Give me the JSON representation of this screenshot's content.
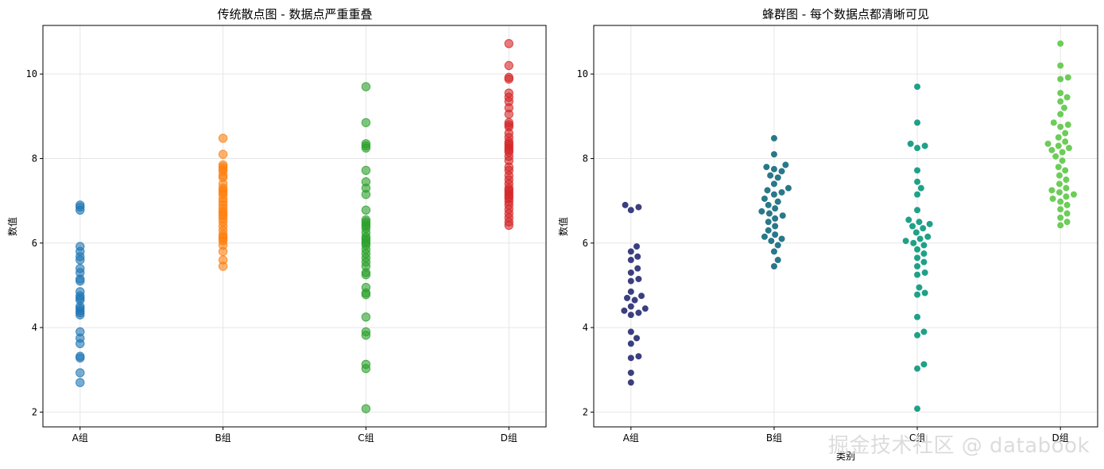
{
  "watermark": "掘金技术社区 @ databook",
  "colors": {
    "left": [
      "#1f77b4",
      "#ff7f0e",
      "#2ca02c",
      "#d62728"
    ],
    "right": [
      "#3b3f80",
      "#28788a",
      "#1fa187",
      "#6ccd58"
    ]
  },
  "chart_data": [
    {
      "type": "scatter",
      "title": "传统散点图 - 数据点严重重叠",
      "xlabel": "",
      "ylabel": "数值",
      "categories": [
        "A组",
        "B组",
        "C组",
        "D组"
      ],
      "yticks": [
        2,
        4,
        6,
        8,
        10
      ],
      "ylim": [
        1.65,
        11.15
      ],
      "grid": true,
      "series": [
        {
          "values": [
            6.9,
            6.85,
            6.78,
            5.92,
            5.8,
            5.68,
            5.6,
            5.4,
            5.3,
            5.15,
            5.1,
            4.85,
            4.75,
            4.7,
            4.65,
            4.5,
            4.45,
            4.4,
            4.35,
            4.3,
            3.9,
            3.75,
            3.62,
            3.32,
            3.28,
            2.93,
            2.7
          ]
        },
        {
          "values": [
            8.48,
            8.1,
            7.85,
            7.8,
            7.75,
            7.7,
            7.6,
            7.55,
            7.4,
            7.3,
            7.25,
            7.2,
            7.15,
            7.05,
            6.98,
            6.9,
            6.82,
            6.75,
            6.7,
            6.65,
            6.58,
            6.5,
            6.4,
            6.3,
            6.2,
            6.15,
            6.1,
            6.05,
            5.95,
            5.8,
            5.6,
            5.45
          ]
        },
        {
          "values": [
            9.7,
            8.85,
            8.35,
            8.3,
            8.25,
            7.72,
            7.45,
            7.3,
            7.15,
            6.78,
            6.55,
            6.5,
            6.45,
            6.4,
            6.35,
            6.25,
            6.15,
            6.1,
            6.05,
            6.0,
            5.95,
            5.85,
            5.75,
            5.65,
            5.55,
            5.45,
            5.3,
            5.25,
            4.95,
            4.82,
            4.78,
            4.25,
            3.9,
            3.82,
            3.13,
            3.03,
            2.08
          ]
        },
        {
          "values": [
            10.72,
            10.2,
            9.92,
            9.88,
            9.55,
            9.45,
            9.35,
            9.2,
            9.05,
            8.85,
            8.8,
            8.75,
            8.6,
            8.5,
            8.4,
            8.35,
            8.3,
            8.25,
            8.2,
            8.15,
            8.05,
            7.95,
            7.8,
            7.72,
            7.6,
            7.5,
            7.4,
            7.3,
            7.25,
            7.2,
            7.15,
            7.1,
            7.05,
            6.98,
            6.9,
            6.8,
            6.7,
            6.6,
            6.5,
            6.42
          ]
        }
      ]
    },
    {
      "type": "scatter",
      "title": "蜂群图 - 每个数据点都清晰可见",
      "xlabel": "类别",
      "ylabel": "数值",
      "categories": [
        "A组",
        "B组",
        "C组",
        "D组"
      ],
      "yticks": [
        2,
        4,
        6,
        8,
        10
      ],
      "ylim": [
        1.65,
        11.15
      ],
      "grid": true,
      "series": [
        {
          "values": [
            6.9,
            6.85,
            6.78,
            5.92,
            5.8,
            5.68,
            5.6,
            5.4,
            5.3,
            5.15,
            5.1,
            4.85,
            4.75,
            4.7,
            4.65,
            4.5,
            4.45,
            4.4,
            4.35,
            4.3,
            3.9,
            3.75,
            3.62,
            3.32,
            3.28,
            2.93,
            2.7
          ]
        },
        {
          "values": [
            8.48,
            8.1,
            7.85,
            7.8,
            7.75,
            7.7,
            7.6,
            7.55,
            7.4,
            7.3,
            7.25,
            7.2,
            7.15,
            7.05,
            6.98,
            6.9,
            6.82,
            6.75,
            6.7,
            6.65,
            6.58,
            6.5,
            6.4,
            6.3,
            6.2,
            6.15,
            6.1,
            6.05,
            5.95,
            5.8,
            5.6,
            5.45
          ]
        },
        {
          "values": [
            9.7,
            8.85,
            8.35,
            8.3,
            8.25,
            7.72,
            7.45,
            7.3,
            7.15,
            6.78,
            6.55,
            6.5,
            6.45,
            6.4,
            6.35,
            6.25,
            6.15,
            6.1,
            6.05,
            6.0,
            5.95,
            5.85,
            5.75,
            5.65,
            5.55,
            5.45,
            5.3,
            5.25,
            4.95,
            4.82,
            4.78,
            4.25,
            3.9,
            3.82,
            3.13,
            3.03,
            2.08
          ]
        },
        {
          "values": [
            10.72,
            10.2,
            9.92,
            9.88,
            9.55,
            9.45,
            9.35,
            9.2,
            9.05,
            8.85,
            8.8,
            8.75,
            8.6,
            8.5,
            8.4,
            8.35,
            8.3,
            8.25,
            8.2,
            8.15,
            8.05,
            7.95,
            7.8,
            7.72,
            7.6,
            7.5,
            7.4,
            7.3,
            7.25,
            7.2,
            7.15,
            7.1,
            7.05,
            6.98,
            6.9,
            6.8,
            6.7,
            6.6,
            6.5,
            6.42
          ]
        }
      ]
    }
  ]
}
